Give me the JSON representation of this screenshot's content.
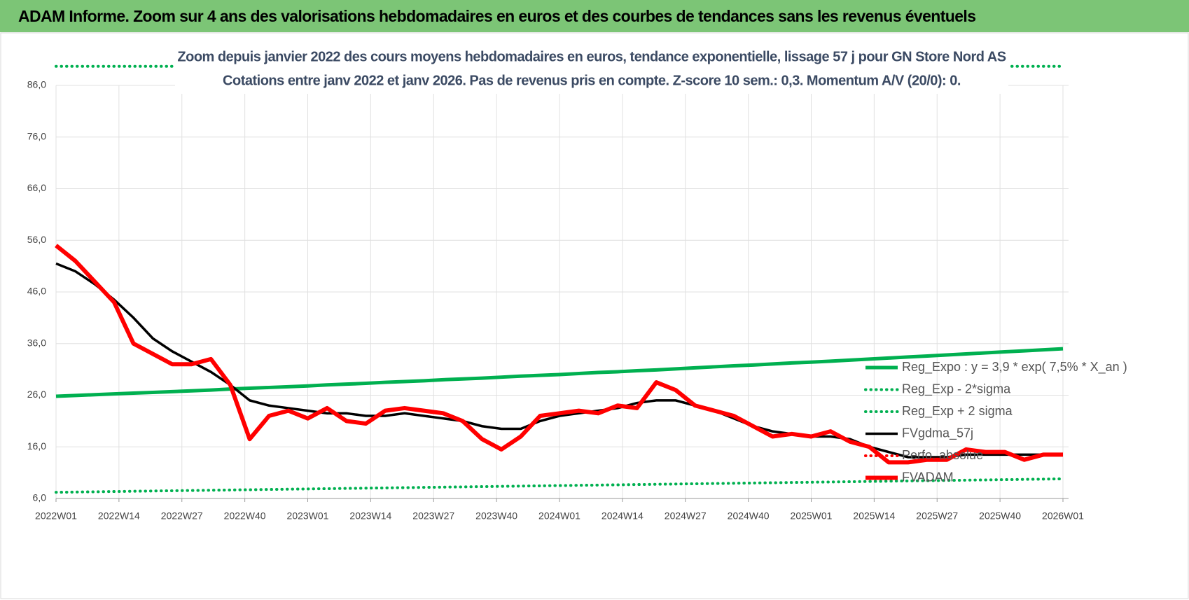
{
  "header": {
    "title": "ADAM Informe. Zoom sur 4 ans des valorisations hebdomadaires en euros et des courbes de tendances sans les revenus éventuels"
  },
  "chart_data": {
    "type": "line",
    "title": "Zoom depuis janvier 2022 des cours moyens hebdomadaires en euros, tendance exponentielle, lissage 57 j pour GN Store Nord AS",
    "subtitle": "Cotations entre janv 2022 et janv 2026. Pas de revenus pris en compte. Z-score 10 sem.: 0,3. Momentum A/V (20/0): 0.",
    "x": [
      0,
      4,
      8,
      12,
      16,
      20,
      24,
      28,
      32,
      36,
      40,
      44,
      48,
      52,
      56,
      60,
      64,
      68,
      72,
      76,
      80,
      84,
      88,
      92,
      96,
      100,
      104,
      108,
      112,
      116,
      120,
      124,
      128,
      132,
      136,
      140,
      144,
      148,
      152,
      156,
      160,
      164,
      168,
      172,
      176,
      180,
      184,
      188,
      192,
      196,
      200,
      204,
      208
    ],
    "xlim": [
      0,
      208
    ],
    "xticks": [
      {
        "value": 0,
        "label": "2022W01"
      },
      {
        "value": 13,
        "label": "2022W14"
      },
      {
        "value": 26,
        "label": "2022W27"
      },
      {
        "value": 39,
        "label": "2022W40"
      },
      {
        "value": 52,
        "label": "2023W01"
      },
      {
        "value": 65,
        "label": "2023W14"
      },
      {
        "value": 78,
        "label": "2023W27"
      },
      {
        "value": 91,
        "label": "2023W40"
      },
      {
        "value": 104,
        "label": "2024W01"
      },
      {
        "value": 117,
        "label": "2024W14"
      },
      {
        "value": 130,
        "label": "2024W27"
      },
      {
        "value": 143,
        "label": "2024W40"
      },
      {
        "value": 156,
        "label": "2025W01"
      },
      {
        "value": 169,
        "label": "2025W14"
      },
      {
        "value": 182,
        "label": "2025W27"
      },
      {
        "value": 195,
        "label": "2025W40"
      },
      {
        "value": 208,
        "label": "2026W01"
      }
    ],
    "ylim": [
      6,
      86
    ],
    "yticks": [
      {
        "value": 6,
        "label": "6,0"
      },
      {
        "value": 16,
        "label": "16,0"
      },
      {
        "value": 26,
        "label": "26,0"
      },
      {
        "value": 36,
        "label": "36,0"
      },
      {
        "value": 46,
        "label": "46,0"
      },
      {
        "value": 56,
        "label": "56,0"
      },
      {
        "value": 66,
        "label": "66,0"
      },
      {
        "value": 76,
        "label": "76,0"
      },
      {
        "value": 86,
        "label": "86,0"
      }
    ],
    "grid": true,
    "series": [
      {
        "name": "Reg_Expo : y = 3,9 * exp( 7,5% *  X_an )",
        "color": "#00b050",
        "style": "solid",
        "values": [
          25.8,
          25.95,
          26.1,
          26.25,
          26.4,
          26.55,
          26.7,
          26.85,
          27.0,
          27.2,
          27.35,
          27.5,
          27.65,
          27.8,
          28.0,
          28.15,
          28.3,
          28.5,
          28.65,
          28.8,
          29.0,
          29.15,
          29.3,
          29.5,
          29.7,
          29.85,
          30.0,
          30.2,
          30.4,
          30.55,
          30.75,
          30.9,
          31.1,
          31.3,
          31.5,
          31.7,
          31.85,
          32.05,
          32.25,
          32.4,
          32.6,
          32.8,
          33.0,
          33.2,
          33.4,
          33.6,
          33.8,
          34.0,
          34.2,
          34.4,
          34.6,
          34.8,
          35.0
        ]
      },
      {
        "name": "Reg_Exp - 2*sigma",
        "color": "#00b050",
        "style": "dotted",
        "values": [
          7.2,
          7.25,
          7.3,
          7.35,
          7.4,
          7.45,
          7.5,
          7.55,
          7.6,
          7.65,
          7.7,
          7.75,
          7.8,
          7.85,
          7.9,
          7.95,
          8.0,
          8.05,
          8.1,
          8.15,
          8.2,
          8.25,
          8.3,
          8.35,
          8.4,
          8.45,
          8.5,
          8.55,
          8.6,
          8.65,
          8.7,
          8.75,
          8.8,
          8.85,
          8.9,
          8.95,
          9.0,
          9.05,
          9.1,
          9.15,
          9.2,
          9.25,
          9.3,
          9.35,
          9.4,
          9.45,
          9.5,
          9.55,
          9.6,
          9.65,
          9.7,
          9.75,
          9.8
        ]
      },
      {
        "name": "Reg_Exp + 2 sigma",
        "color": "#00b050",
        "style": "dotted",
        "values": [
          89.7,
          89.7,
          89.7,
          89.7,
          89.7,
          89.7,
          89.7,
          89.7,
          89.7,
          89.7,
          89.7,
          89.7,
          89.7,
          89.7,
          89.7,
          89.7,
          89.7,
          89.7,
          89.7,
          89.7,
          89.7,
          89.7,
          89.7,
          89.7,
          89.7,
          89.7,
          89.7,
          89.7,
          89.7,
          89.7,
          89.7,
          89.7,
          89.7,
          89.7,
          89.7,
          89.7,
          89.7,
          89.7,
          89.7,
          89.7,
          89.7,
          89.7,
          89.7,
          89.7,
          89.7,
          89.7,
          89.7,
          89.7,
          89.7,
          89.7,
          89.7,
          89.7,
          89.7
        ]
      },
      {
        "name": "FVgdma_57j",
        "color": "#000000",
        "style": "solid",
        "values": [
          51.5,
          50,
          47.5,
          44.5,
          41,
          37,
          34.5,
          32.5,
          30.5,
          28,
          25,
          24,
          23.5,
          23,
          22.5,
          22.5,
          22,
          22,
          22.5,
          22,
          21.5,
          21,
          20,
          19.5,
          19.5,
          21,
          22,
          22.5,
          23,
          23.5,
          24.5,
          25,
          25,
          24,
          23,
          21.5,
          20,
          19,
          18.5,
          18,
          18,
          17.5,
          16,
          15,
          14,
          14,
          14,
          14.5,
          14.5,
          14.5,
          14.5,
          14.5,
          14.5
        ]
      },
      {
        "name": "Perfo. absolue",
        "color": "#ff0000",
        "style": "dotted",
        "values": [
          null,
          null,
          null,
          null,
          null,
          null,
          null,
          null,
          null,
          null,
          null,
          null,
          null,
          null,
          null,
          null,
          null,
          null,
          null,
          null,
          null,
          null,
          null,
          null,
          null,
          null,
          null,
          null,
          null,
          null,
          null,
          null,
          null,
          null,
          null,
          null,
          null,
          null,
          null,
          null,
          null,
          null,
          null,
          null,
          null,
          null,
          null,
          null,
          null,
          null,
          null,
          null,
          null
        ]
      },
      {
        "name": "FVADAM",
        "color": "#ff0000",
        "style": "thick",
        "values": [
          55,
          52,
          48,
          44,
          36,
          34,
          32,
          32,
          33,
          28,
          17.5,
          22,
          23,
          21.5,
          23.5,
          21,
          20.5,
          23,
          23.5,
          23,
          22.5,
          21,
          17.5,
          15.5,
          18,
          22,
          22.5,
          23,
          22.5,
          24,
          23.5,
          28.5,
          27,
          24,
          23,
          22,
          20,
          18,
          18.5,
          18,
          19,
          17,
          16,
          13,
          13,
          13.5,
          13.5,
          15.5,
          15,
          15,
          13.5,
          14.5,
          14.5
        ]
      }
    ]
  }
}
